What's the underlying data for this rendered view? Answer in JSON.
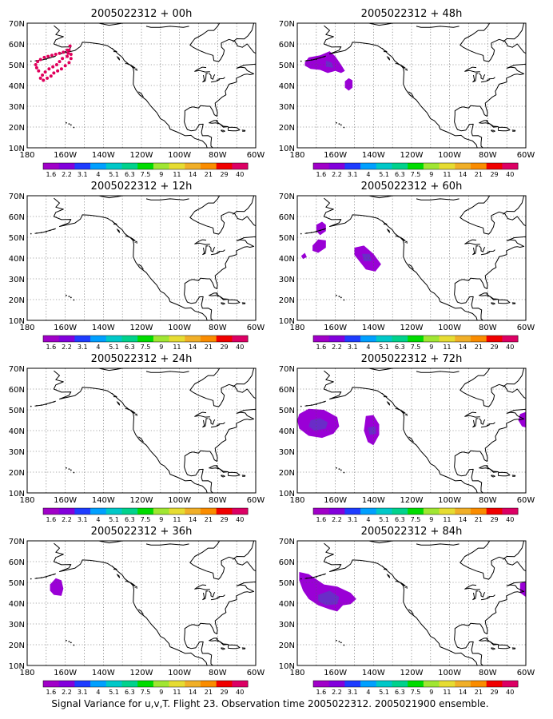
{
  "figure": {
    "caption": "Signal Variance for u,v,T. Flight 23. Observation time 2005022312. 2005021900 ensemble."
  },
  "axes": {
    "lat_labels": [
      "70N",
      "60N",
      "50N",
      "40N",
      "30N",
      "20N",
      "10N"
    ],
    "lon_labels": [
      "180",
      "160W",
      "140W",
      "120W",
      "100W",
      "80W",
      "60W"
    ],
    "lat_range": [
      10,
      70
    ],
    "lon_range": [
      -180,
      -60
    ],
    "grid": "dotted"
  },
  "colorbar": {
    "labels": [
      "1.6",
      "2.2",
      "3.1",
      "4",
      "5.1",
      "6.3",
      "7.5",
      "9",
      "11",
      "14",
      "21",
      "29",
      "40"
    ],
    "colors": [
      "#a000c8",
      "#8200dc",
      "#1e3cff",
      "#00a0ff",
      "#00c8c8",
      "#00d28c",
      "#00dc00",
      "#a0e632",
      "#e6dc32",
      "#f0af28",
      "#fa8c00",
      "#f00000",
      "#dc0064"
    ]
  },
  "panels": [
    {
      "title": "2005022312 + 00h",
      "variance_blobs": [],
      "obs_points": [
        [
          -174,
          47
        ],
        [
          -175,
          48.5
        ],
        [
          -175.5,
          50
        ],
        [
          -174.5,
          51.5
        ],
        [
          -173,
          52.5
        ],
        [
          -171,
          53.5
        ],
        [
          -169,
          54
        ],
        [
          -167,
          54.5
        ],
        [
          -165,
          55
        ],
        [
          -163,
          55.5
        ],
        [
          -161,
          56
        ],
        [
          -159,
          57
        ],
        [
          -158.5,
          55.5
        ],
        [
          -159,
          54
        ],
        [
          -161.5,
          53
        ],
        [
          -163,
          51.5
        ],
        [
          -164.5,
          50
        ],
        [
          -166.5,
          49
        ],
        [
          -168.5,
          48
        ],
        [
          -170.5,
          46.5
        ],
        [
          -172,
          45
        ],
        [
          -173,
          43.5
        ],
        [
          -171.5,
          42.5
        ],
        [
          -169.5,
          43.5
        ],
        [
          -167.5,
          44.5
        ],
        [
          -166,
          46
        ],
        [
          -164,
          47
        ],
        [
          -162,
          48
        ],
        [
          -160,
          49.5
        ],
        [
          -158,
          51
        ],
        [
          -157,
          53
        ],
        [
          -157,
          55
        ],
        [
          -158,
          57
        ],
        [
          -157.5,
          59
        ]
      ]
    },
    {
      "title": "2005022312 + 12h",
      "variance_blobs": [],
      "obs_points": []
    },
    {
      "title": "2005022312 + 24h",
      "variance_blobs": [],
      "obs_points": []
    },
    {
      "title": "2005022312 + 36h",
      "obs_points": [],
      "variance_blobs": [
        {
          "level": 0,
          "points": [
            [
              -168,
              49
            ],
            [
              -165,
              52
            ],
            [
              -162,
              51
            ],
            [
              -161,
              47
            ],
            [
              -162,
              43.5
            ],
            [
              -166,
              44
            ],
            [
              -168,
              46
            ]
          ]
        }
      ]
    },
    {
      "title": "2005022312 + 48h",
      "obs_points": [],
      "variance_blobs": [
        {
          "level": 0,
          "points": [
            [
              -176,
              51
            ],
            [
              -174,
              53.5
            ],
            [
              -168,
              54.5
            ],
            [
              -163,
              56.5
            ],
            [
              -160,
              54
            ],
            [
              -157,
              50
            ],
            [
              -155,
              47
            ],
            [
              -157,
              46
            ],
            [
              -160,
              47
            ],
            [
              -164,
              46
            ],
            [
              -168,
              47.5
            ],
            [
              -173,
              48
            ],
            [
              -176,
              49.5
            ]
          ]
        },
        {
          "level": 1,
          "points": [
            [
              -165,
              52
            ],
            [
              -162,
              51
            ],
            [
              -161,
              48.5
            ],
            [
              -165,
              49
            ]
          ]
        },
        {
          "level": 0,
          "points": [
            [
              -155,
              42
            ],
            [
              -153,
              43.5
            ],
            [
              -151,
              42.5
            ],
            [
              -151,
              39
            ],
            [
              -153,
              37.5
            ],
            [
              -155,
              39
            ]
          ]
        }
      ]
    },
    {
      "title": "2005022312 + 60h",
      "obs_points": [],
      "variance_blobs": [
        {
          "level": 0,
          "points": [
            [
              -170,
              56
            ],
            [
              -167,
              57.5
            ],
            [
              -165,
              56
            ],
            [
              -165,
              53
            ],
            [
              -168,
              51
            ],
            [
              -170,
              53
            ]
          ]
        },
        {
          "level": 0,
          "points": [
            [
              -172,
              46
            ],
            [
              -169,
              49
            ],
            [
              -165,
              48.5
            ],
            [
              -165,
              45
            ],
            [
              -169,
              42.5
            ],
            [
              -172,
              43.5
            ]
          ]
        },
        {
          "level": 0,
          "points": [
            [
              -178,
              41
            ],
            [
              -176,
              42.5
            ],
            [
              -175,
              40.5
            ],
            [
              -177,
              39.5
            ]
          ]
        },
        {
          "level": 0,
          "points": [
            [
              -150,
              45
            ],
            [
              -145,
              46
            ],
            [
              -140,
              42
            ],
            [
              -136,
              37
            ],
            [
              -139,
              33.5
            ],
            [
              -144,
              34.5
            ],
            [
              -147,
              38
            ],
            [
              -150,
              41.5
            ]
          ]
        },
        {
          "level": 1,
          "points": [
            [
              -146,
              42
            ],
            [
              -142,
              42
            ],
            [
              -141,
              38.5
            ],
            [
              -145,
              38.5
            ]
          ]
        }
      ]
    },
    {
      "title": "2005022312 + 72h",
      "obs_points": [],
      "variance_blobs": [
        {
          "level": 0,
          "points": [
            [
              -179,
              48
            ],
            [
              -174,
              50.5
            ],
            [
              -166,
              50
            ],
            [
              -159,
              46.5
            ],
            [
              -158,
              42
            ],
            [
              -161,
              38.5
            ],
            [
              -167,
              36.5
            ],
            [
              -174,
              37.5
            ],
            [
              -179,
              41
            ],
            [
              -180,
              45
            ]
          ]
        },
        {
          "level": 1,
          "points": [
            [
              -173,
              45
            ],
            [
              -168,
              46
            ],
            [
              -164,
              44
            ],
            [
              -165,
              41
            ],
            [
              -171,
              40
            ],
            [
              -174,
              42
            ]
          ]
        },
        {
          "level": 0,
          "points": [
            [
              -144,
              47
            ],
            [
              -140,
              47.5
            ],
            [
              -137,
              43
            ],
            [
              -137,
              38
            ],
            [
              -140,
              33
            ],
            [
              -143,
              34.5
            ],
            [
              -145,
              40
            ]
          ]
        },
        {
          "level": 1,
          "points": [
            [
              -143,
              41.5
            ],
            [
              -139,
              42
            ],
            [
              -138.5,
              38.5
            ],
            [
              -142,
              38
            ]
          ]
        },
        {
          "level": 0,
          "points": [
            [
              -60,
              49
            ],
            [
              -63,
              48
            ],
            [
              -64,
              45
            ],
            [
              -62,
              42
            ],
            [
              -60,
              41.5
            ]
          ]
        }
      ]
    },
    {
      "title": "2005022312 + 84h",
      "obs_points": [],
      "variance_blobs": [
        {
          "level": 0,
          "points": [
            [
              -179,
              55
            ],
            [
              -174,
              54
            ],
            [
              -166,
              49
            ],
            [
              -159,
              48
            ],
            [
              -152,
              45
            ],
            [
              -149,
              42
            ],
            [
              -152,
              39.5
            ],
            [
              -156,
              39
            ],
            [
              -159,
              36
            ],
            [
              -163,
              37
            ],
            [
              -169,
              39
            ],
            [
              -174,
              42
            ],
            [
              -177,
              46
            ],
            [
              -179,
              51
            ]
          ]
        },
        {
          "level": 1,
          "points": [
            [
              -169,
              44
            ],
            [
              -163,
              46
            ],
            [
              -158,
              43
            ],
            [
              -159,
              39.5
            ],
            [
              -165,
              39
            ],
            [
              -169,
              41
            ]
          ]
        },
        {
          "level": 0,
          "points": [
            [
              -60,
              50.5
            ],
            [
              -63,
              49.5
            ],
            [
              -63,
              45
            ],
            [
              -60,
              43
            ]
          ]
        }
      ]
    }
  ]
}
